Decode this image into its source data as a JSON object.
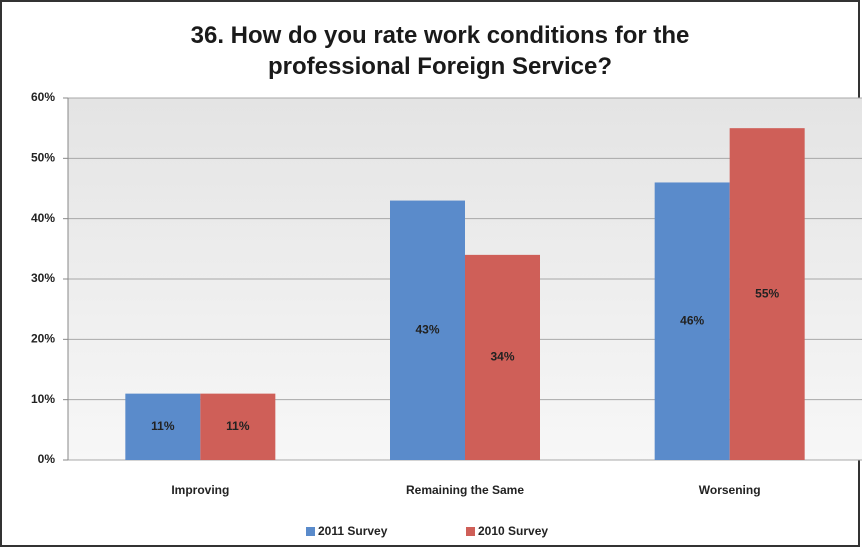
{
  "chart_data": {
    "type": "bar",
    "title": "36.  How do you rate work conditions for the professional Foreign Service?",
    "categories": [
      "Improving",
      "Remaining the Same",
      "Worsening"
    ],
    "series": [
      {
        "name": "2011 Survey",
        "color": "#5a8bcb",
        "values": [
          11,
          43,
          46
        ],
        "value_labels": [
          "11%",
          "43%",
          "46%"
        ]
      },
      {
        "name": "2010 Survey",
        "color": "#cf5f58",
        "values": [
          11,
          34,
          55
        ],
        "value_labels": [
          "11%",
          "34%",
          "55%"
        ]
      }
    ],
    "ylim": [
      0,
      60
    ],
    "yticks": [
      {
        "value": 0,
        "label": "0%"
      },
      {
        "value": 10,
        "label": "10%"
      },
      {
        "value": 20,
        "label": "20%"
      },
      {
        "value": 30,
        "label": "30%"
      },
      {
        "value": 40,
        "label": "40%"
      },
      {
        "value": 50,
        "label": "50%"
      },
      {
        "value": 60,
        "label": "60%"
      }
    ],
    "grid": true
  }
}
